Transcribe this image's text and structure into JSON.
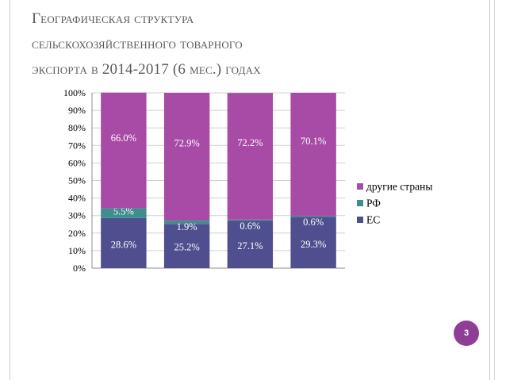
{
  "slide": {
    "title_lines": [
      "Географическая структура",
      "сельскохозяйственного товарного",
      "экспорта в 2014-2017 (6 мес.) годах"
    ],
    "page_number": "3"
  },
  "colors": {
    "ec": "#4f4f8f",
    "rf": "#3f8e8e",
    "other": "#a84ba6",
    "label": "#ffffff",
    "grid": "#d0d0d0",
    "axis_text": "#000000"
  },
  "chart_data": {
    "type": "bar",
    "stacked": true,
    "categories": [
      "",
      "",
      "",
      ""
    ],
    "y_ticks": [
      "0%",
      "10%",
      "20%",
      "30%",
      "40%",
      "50%",
      "60%",
      "70%",
      "80%",
      "90%",
      "100%"
    ],
    "ylim": [
      0,
      100
    ],
    "series": [
      {
        "name": "ЕС",
        "color": "#4f4f8f",
        "values": [
          28.6,
          25.2,
          27.1,
          29.3
        ],
        "labels": [
          "28.6%",
          "25.2%",
          "27.1%",
          "29.3%"
        ]
      },
      {
        "name": "РФ",
        "color": "#3f8e8e",
        "values": [
          5.5,
          1.9,
          0.6,
          0.6
        ],
        "labels": [
          "5.5%",
          "1.9%",
          "0.6%",
          "0.6%"
        ]
      },
      {
        "name": "другие страны",
        "color": "#a84ba6",
        "values": [
          66.0,
          72.9,
          72.2,
          70.1
        ],
        "labels": [
          "66.0%",
          "72.9%",
          "72.2%",
          "70.1%"
        ]
      }
    ],
    "legend_position": "right",
    "legend": [
      "другие страны",
      "РФ",
      "ЕС"
    ],
    "grid": true
  }
}
